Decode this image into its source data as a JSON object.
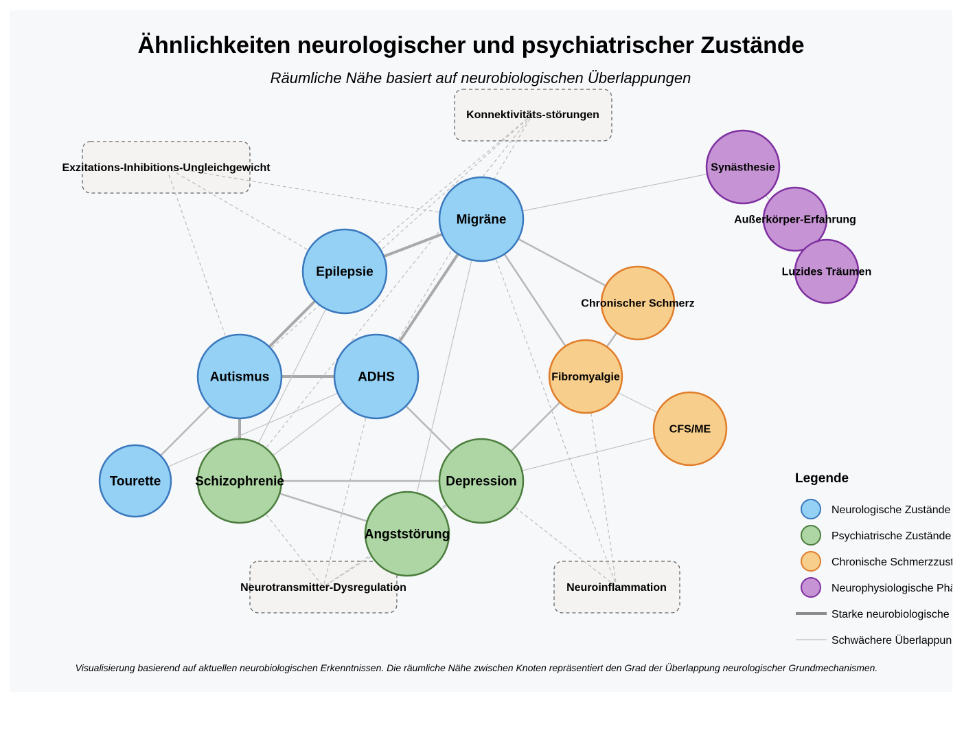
{
  "title": "Ähnlichkeiten neurologischer und psychiatrischer Zustände",
  "subtitle": "Räumliche Nähe basiert auf neurobiologischen Überlappungen",
  "colors": {
    "neuro_fill": "#94d1f5",
    "neuro_stroke": "#3a78bd",
    "psych_fill": "#aed6a5",
    "psych_stroke": "#4a7d3c",
    "pain_fill": "#f7ce8b",
    "pain_stroke": "#e07d2a",
    "phys_fill": "#c694d4",
    "phys_stroke": "#7e2fa0"
  },
  "nodes": {
    "migraene": {
      "label": "Migräne",
      "group": "neuro"
    },
    "epilepsie": {
      "label": "Epilepsie",
      "group": "neuro"
    },
    "autismus": {
      "label": "Autismus",
      "group": "neuro"
    },
    "adhs": {
      "label": "ADHS",
      "group": "neuro"
    },
    "tourette": {
      "label": "Tourette",
      "group": "neuro"
    },
    "schizophrenie": {
      "label": "Schizophrenie",
      "group": "psych"
    },
    "depression": {
      "label": "Depression",
      "group": "psych"
    },
    "angst": {
      "label": "Angststörung",
      "group": "psych"
    },
    "schmerz": {
      "label": "Chronischer Schmerz",
      "group": "pain"
    },
    "fibro": {
      "label": "Fibromyalgie",
      "group": "pain"
    },
    "cfs": {
      "label": "CFS/ME",
      "group": "pain"
    },
    "synaesthesie": {
      "label": "Synästhesie",
      "group": "phys"
    },
    "ausserkoerper": {
      "label": "Außerkörper-Erfahrung",
      "group": "phys"
    },
    "luzid": {
      "label": "Luzides Träumen",
      "group": "phys"
    }
  },
  "mechanisms": {
    "konnektivitaet": {
      "label": "Konnektivitäts-störungen"
    },
    "exzitation": {
      "label": "Exzitations-Inhibitions-Ungleichgewicht"
    },
    "neurotransmitter": {
      "label": "Neurotransmitter-Dysregulation"
    },
    "neuroinflammation": {
      "label": "Neuroinflammation"
    }
  },
  "links": [
    {
      "source": "migraene",
      "target": "epilepsie",
      "strength": "strong"
    },
    {
      "source": "migraene",
      "target": "adhs",
      "strength": "strong"
    },
    {
      "source": "epilepsie",
      "target": "autismus",
      "strength": "strong"
    },
    {
      "source": "autismus",
      "target": "adhs",
      "strength": "strong"
    },
    {
      "source": "autismus",
      "target": "schizophrenie",
      "strength": "strong"
    },
    {
      "source": "migraene",
      "target": "fibro",
      "strength": "medium"
    },
    {
      "source": "migraene",
      "target": "schmerz",
      "strength": "medium"
    },
    {
      "source": "schmerz",
      "target": "fibro",
      "strength": "medium"
    },
    {
      "source": "autismus",
      "target": "tourette",
      "strength": "medium"
    },
    {
      "source": "adhs",
      "target": "depression",
      "strength": "medium"
    },
    {
      "source": "schizophrenie",
      "target": "depression",
      "strength": "medium"
    },
    {
      "source": "schizophrenie",
      "target": "angst",
      "strength": "medium"
    },
    {
      "source": "depression",
      "target": "fibro",
      "strength": "medium"
    },
    {
      "source": "migraene",
      "target": "synaesthesie",
      "strength": "weak"
    },
    {
      "source": "migraene",
      "target": "angst",
      "strength": "weak"
    },
    {
      "source": "epilepsie",
      "target": "schizophrenie",
      "strength": "weak"
    },
    {
      "source": "adhs",
      "target": "tourette",
      "strength": "weak"
    },
    {
      "source": "adhs",
      "target": "schizophrenie",
      "strength": "weak"
    },
    {
      "source": "fibro",
      "target": "cfs",
      "strength": "weak"
    },
    {
      "source": "depression",
      "target": "cfs",
      "strength": "weak"
    },
    {
      "source": "depression",
      "target": "angst",
      "strength": "weak"
    },
    {
      "source": "synaesthesie",
      "target": "luzid",
      "strength": "weak"
    }
  ],
  "mechanism_links": [
    {
      "node": "epilepsie",
      "mechanism": "exzitation"
    },
    {
      "node": "autismus",
      "mechanism": "exzitation"
    },
    {
      "node": "migraene",
      "mechanism": "exzitation"
    },
    {
      "node": "epilepsie",
      "mechanism": "konnektivitaet"
    },
    {
      "node": "autismus",
      "mechanism": "konnektivitaet"
    },
    {
      "node": "adhs",
      "mechanism": "konnektivitaet"
    },
    {
      "node": "schizophrenie",
      "mechanism": "konnektivitaet"
    },
    {
      "node": "schizophrenie",
      "mechanism": "neurotransmitter"
    },
    {
      "node": "depression",
      "mechanism": "neurotransmitter"
    },
    {
      "node": "angst",
      "mechanism": "neurotransmitter"
    },
    {
      "node": "adhs",
      "mechanism": "neurotransmitter"
    },
    {
      "node": "migraene",
      "mechanism": "neuroinflammation"
    },
    {
      "node": "fibro",
      "mechanism": "neuroinflammation"
    },
    {
      "node": "depression",
      "mechanism": "neuroinflammation"
    }
  ],
  "legend": {
    "title": "Legende",
    "items": [
      {
        "label": "Neurologische Zustände",
        "kind": "neuro"
      },
      {
        "label": "Psychiatrische Zustände",
        "kind": "psych"
      },
      {
        "label": "Chronische Schmerzzustände",
        "kind": "pain"
      },
      {
        "label": "Neurophysiologische Phänomene",
        "kind": "phys"
      },
      {
        "label": "Starke neurobiologische Überlappung",
        "kind": "strong-line"
      },
      {
        "label": "Schwächere Überlappung",
        "kind": "weak-line"
      }
    ]
  },
  "footnote": "Visualisierung basierend auf aktuellen neurobiologischen Erkenntnissen. Die räumliche Nähe zwischen Knoten repräsentiert den Grad der Überlappung neurologischer Grundmechanismen."
}
